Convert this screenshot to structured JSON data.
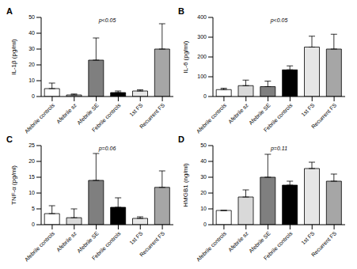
{
  "chart_data": [
    {
      "type": "bar",
      "title": "A",
      "annotation": "p<0.05",
      "y_label": "IL-1β (pg/ml)",
      "categories": [
        "Afebrile controls",
        "Afebrile sz",
        "Afebrile SE",
        "Febrile controls",
        "1st FS",
        "Recurrent FS"
      ],
      "values": [
        5,
        1,
        23,
        2.5,
        3.5,
        30
      ],
      "errors": [
        3.5,
        0.6,
        14,
        1,
        0.8,
        16
      ],
      "colors": [
        "#ffffff",
        "#d9d9d9",
        "#7f7f7f",
        "#000000",
        "#e6e6e6",
        "#a6a6a6"
      ],
      "ylim": [
        0,
        50
      ],
      "yticks": [
        0,
        10,
        20,
        30,
        40,
        50
      ]
    },
    {
      "type": "bar",
      "title": "B",
      "annotation": "p<0.05",
      "y_label": "IL-6 (pg/ml)",
      "categories": [
        "Afebrile controls",
        "Afebrile sz",
        "Afebrile SE",
        "Febrile controls",
        "1st FS",
        "Recurrent FS"
      ],
      "values": [
        35,
        55,
        50,
        135,
        250,
        240
      ],
      "errors": [
        7,
        28,
        28,
        20,
        55,
        75
      ],
      "colors": [
        "#ffffff",
        "#d9d9d9",
        "#7f7f7f",
        "#000000",
        "#e6e6e6",
        "#a6a6a6"
      ],
      "ylim": [
        0,
        400
      ],
      "yticks": [
        0,
        100,
        200,
        300,
        400
      ]
    },
    {
      "type": "bar",
      "title": "C",
      "annotation": "p=0.06",
      "y_label": "TNF-α (pg/ml)",
      "categories": [
        "Afebrile controls",
        "Afebrile sz",
        "Afebrile SE",
        "Febrile controls",
        "1st FS",
        "Recurrent FS"
      ],
      "values": [
        3.5,
        2.2,
        14,
        5.5,
        2,
        11.8
      ],
      "errors": [
        2.5,
        2.8,
        8.5,
        3,
        0.5,
        5.2
      ],
      "colors": [
        "#ffffff",
        "#d9d9d9",
        "#7f7f7f",
        "#000000",
        "#e6e6e6",
        "#a6a6a6"
      ],
      "ylim": [
        0,
        25
      ],
      "yticks": [
        0,
        5,
        10,
        15,
        20,
        25
      ]
    },
    {
      "type": "bar",
      "title": "D",
      "annotation": "p=0.11",
      "y_label": "HMGB1 (ng/ml)",
      "categories": [
        "Afebrile controls",
        "Afebrile sz",
        "Afebrile SE",
        "Febrile controls",
        "1st FS",
        "Recurrent FS"
      ],
      "values": [
        9,
        17.5,
        30,
        25,
        35.5,
        27.5
      ],
      "errors": [
        0,
        4.5,
        14.5,
        2.5,
        4,
        4.5
      ],
      "colors": [
        "#ffffff",
        "#d9d9d9",
        "#7f7f7f",
        "#000000",
        "#e6e6e6",
        "#a6a6a6"
      ],
      "ylim": [
        0,
        50
      ],
      "yticks": [
        0,
        10,
        20,
        30,
        40,
        50
      ]
    }
  ]
}
